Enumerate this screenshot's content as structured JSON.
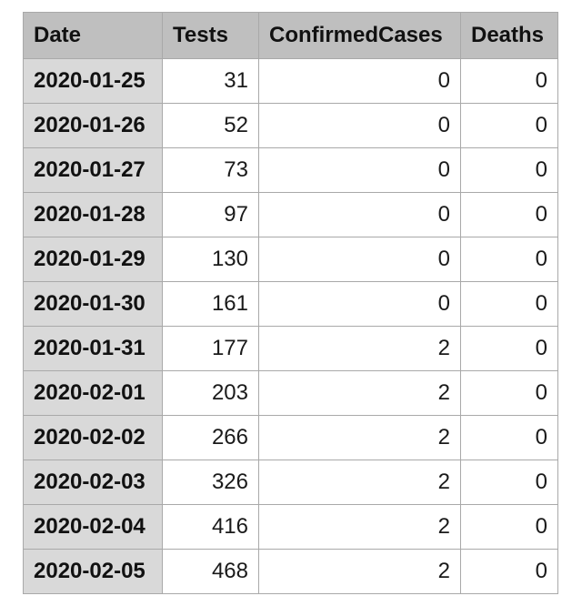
{
  "table": {
    "headers": [
      "Date",
      "Tests",
      "ConfirmedCases",
      "Deaths"
    ],
    "rows": [
      [
        "2020-01-25",
        "31",
        "0",
        "0"
      ],
      [
        "2020-01-26",
        "52",
        "0",
        "0"
      ],
      [
        "2020-01-27",
        "73",
        "0",
        "0"
      ],
      [
        "2020-01-28",
        "97",
        "0",
        "0"
      ],
      [
        "2020-01-29",
        "130",
        "0",
        "0"
      ],
      [
        "2020-01-30",
        "161",
        "0",
        "0"
      ],
      [
        "2020-01-31",
        "177",
        "2",
        "0"
      ],
      [
        "2020-02-01",
        "203",
        "2",
        "0"
      ],
      [
        "2020-02-02",
        "266",
        "2",
        "0"
      ],
      [
        "2020-02-03",
        "326",
        "2",
        "0"
      ],
      [
        "2020-02-04",
        "416",
        "2",
        "0"
      ],
      [
        "2020-02-05",
        "468",
        "2",
        "0"
      ]
    ]
  }
}
